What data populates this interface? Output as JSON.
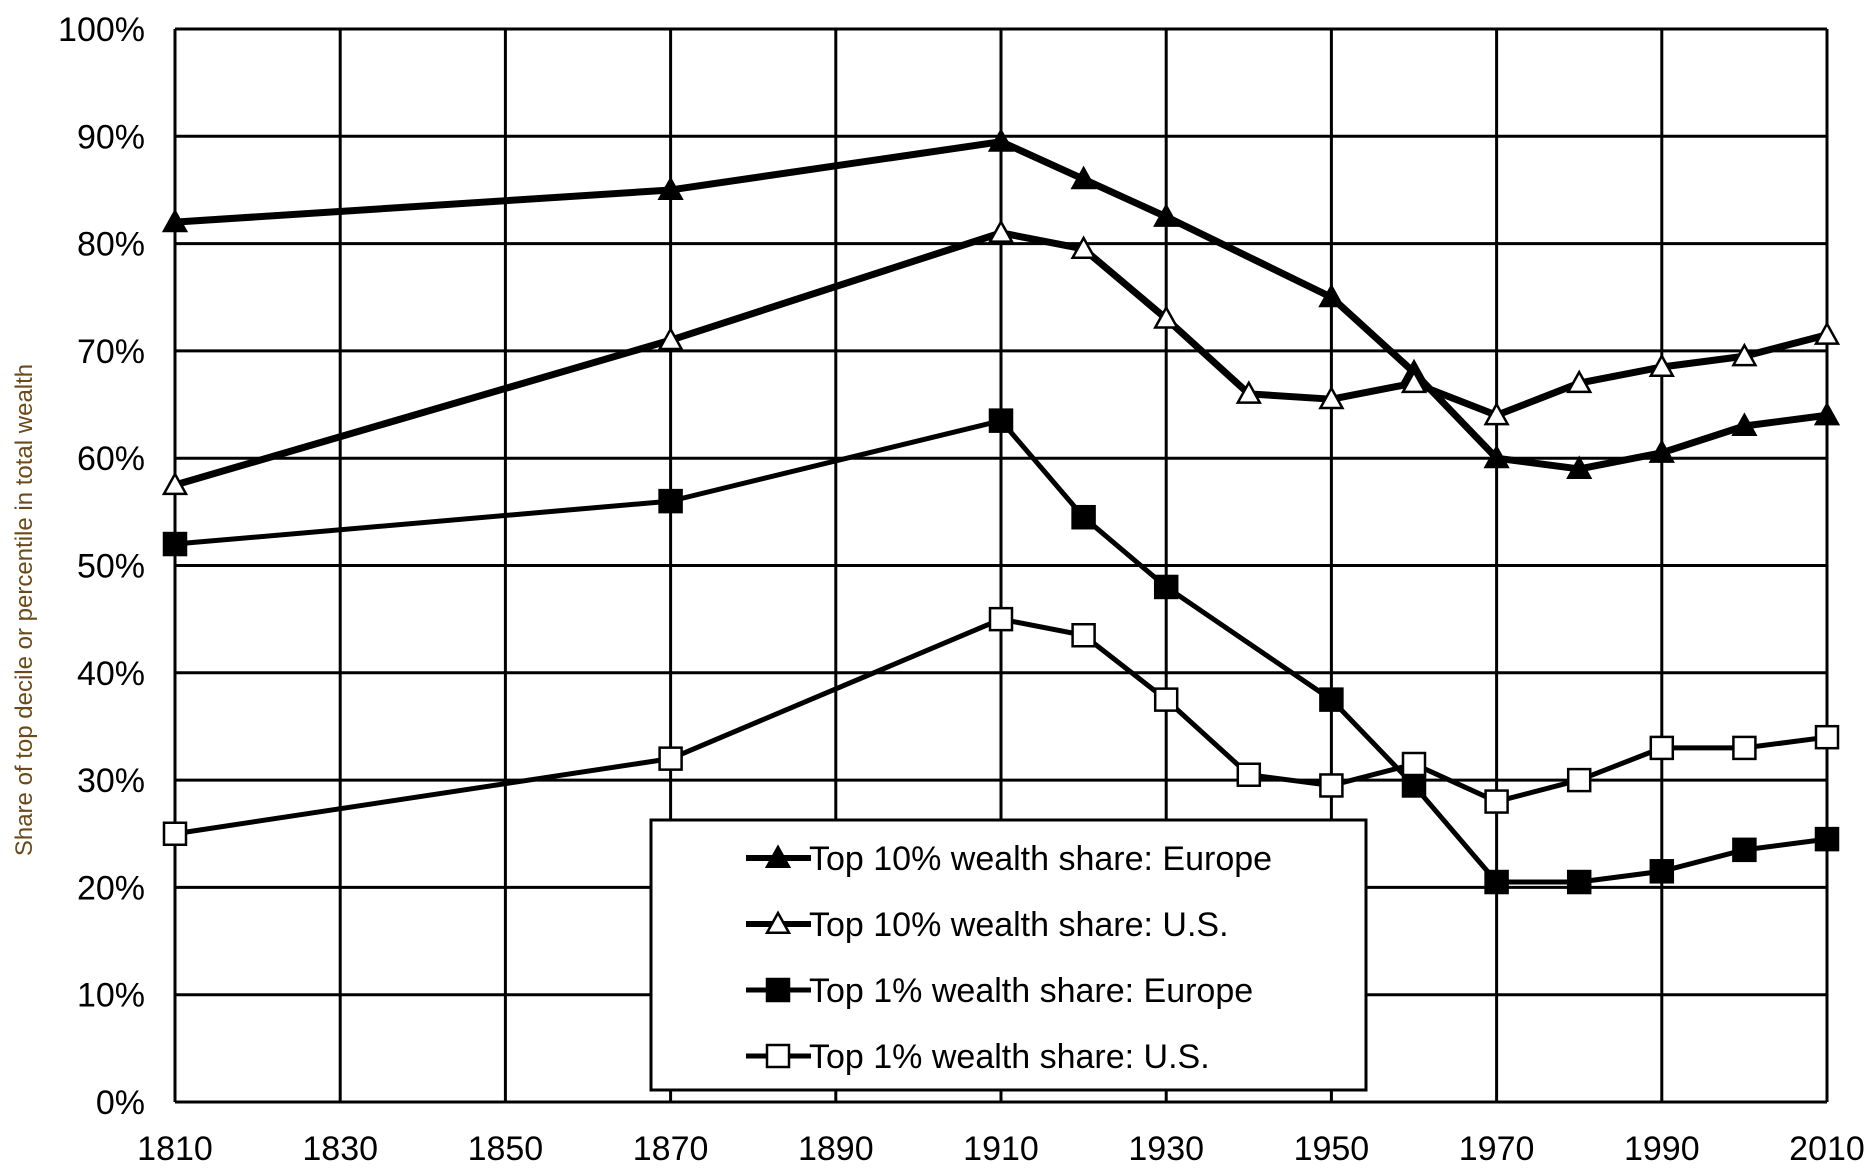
{
  "chart_data": {
    "type": "line",
    "title": "",
    "xlabel": "",
    "ylabel": "Share of top decile or percentile in total wealth",
    "xlim": [
      1810,
      2010
    ],
    "ylim": [
      0,
      100
    ],
    "x_ticks": [
      "1810",
      "1830",
      "1850",
      "1870",
      "1890",
      "1910",
      "1930",
      "1950",
      "1970",
      "1990",
      "2010"
    ],
    "y_ticks": [
      "0%",
      "10%",
      "20%",
      "30%",
      "40%",
      "50%",
      "60%",
      "70%",
      "80%",
      "90%",
      "100%"
    ],
    "grid": true,
    "legend_position": "bottom-center",
    "series": [
      {
        "name": "Top 10% wealth share: Europe",
        "marker": "filled-triangle",
        "line_weight": "heavy",
        "x": [
          1810,
          1870,
          1910,
          1920,
          1930,
          1950,
          1960,
          1970,
          1980,
          1990,
          2000,
          2010
        ],
        "y": [
          82,
          85,
          89.5,
          86,
          82.5,
          75,
          68,
          60,
          59,
          60.5,
          63,
          64
        ]
      },
      {
        "name": "Top 10% wealth share: U.S.",
        "marker": "open-triangle",
        "line_weight": "heavy",
        "x": [
          1810,
          1870,
          1910,
          1920,
          1930,
          1940,
          1950,
          1960,
          1970,
          1980,
          1990,
          2000,
          2010
        ],
        "y": [
          57.5,
          71,
          81,
          79.5,
          73,
          66,
          65.5,
          67,
          64,
          67,
          68.5,
          69.5,
          71.5
        ]
      },
      {
        "name": "Top 1% wealth share: Europe",
        "marker": "filled-square",
        "line_weight": "normal",
        "x": [
          1810,
          1870,
          1910,
          1920,
          1930,
          1950,
          1960,
          1970,
          1980,
          1990,
          2000,
          2010
        ],
        "y": [
          52,
          56,
          63.5,
          54.5,
          48,
          37.5,
          29.5,
          20.5,
          20.5,
          21.5,
          23.5,
          24.5
        ]
      },
      {
        "name": "Top 1% wealth share: U.S.",
        "marker": "open-square",
        "line_weight": "normal",
        "x": [
          1810,
          1870,
          1910,
          1920,
          1930,
          1940,
          1950,
          1960,
          1970,
          1980,
          1990,
          2000,
          2010
        ],
        "y": [
          25,
          32,
          45,
          43.5,
          37.5,
          30.5,
          29.5,
          31.5,
          28,
          30,
          33,
          33,
          34
        ]
      }
    ]
  }
}
